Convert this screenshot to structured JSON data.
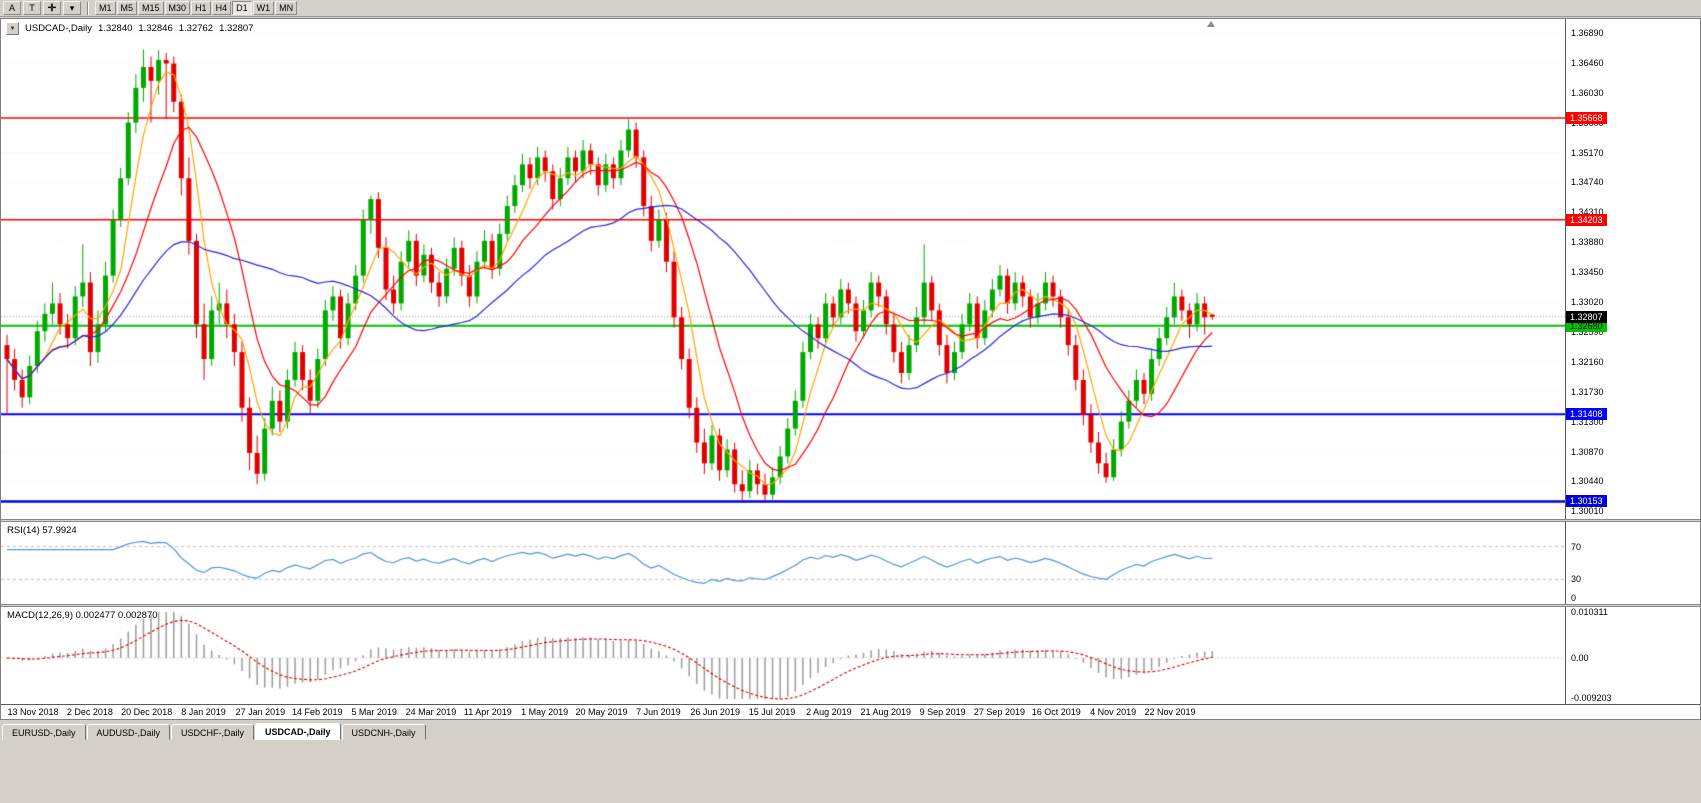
{
  "toolbar": {
    "buttons": [
      "A",
      "T"
    ],
    "timeframes": [
      "M1",
      "M5",
      "M15",
      "M30",
      "H1",
      "H4",
      "D1",
      "W1",
      "MN"
    ],
    "active_timeframe": "D1"
  },
  "chart_data": {
    "type": "candlestick",
    "symbol": "USDCAD-",
    "period": "Daily",
    "title": "USDCAD-,Daily",
    "ohlc_display": {
      "open": "1.32840",
      "high": "1.32846",
      "low": "1.32762",
      "close": "1.32807"
    },
    "price_axis_labels": [
      "1.36890",
      "1.36460",
      "1.36030",
      "1.35600",
      "1.35170",
      "1.34740",
      "1.34310",
      "1.33880",
      "1.33450",
      "1.33020",
      "1.32590",
      "1.32160",
      "1.31730",
      "1.31300",
      "1.30870",
      "1.30440",
      "1.30010"
    ],
    "x_axis_dates": [
      "13 Nov 2018",
      "2 Dec 2018",
      "20 Dec 2018",
      "8 Jan 2019",
      "27 Jan 2019",
      "14 Feb 2019",
      "5 Mar 2019",
      "24 Mar 2019",
      "11 Apr 2019",
      "1 May 2019",
      "20 May 2019",
      "7 Jun 2019",
      "26 Jun 2019",
      "15 Jul 2019",
      "2 Aug 2019",
      "21 Aug 2019",
      "9 Sep 2019",
      "27 Sep 2019",
      "16 Oct 2019",
      "4 Nov 2019",
      "22 Nov 2019"
    ],
    "scale": {
      "price_top": 1.3709,
      "price_bottom": 1.299
    },
    "colors": {
      "up": "#00A800",
      "down": "#E00000",
      "bid_line": "#999999",
      "background": "#FFFFFF"
    },
    "horizontal_lines": [
      {
        "price": 1.35668,
        "label": "1.35668",
        "color": "#FF0000",
        "text_color": "#FFFFFF",
        "width": 1.5
      },
      {
        "price": 1.34203,
        "label": "1.34203",
        "color": "#FF0000",
        "text_color": "#FFFFFF",
        "width": 1.5
      },
      {
        "price": 1.3268,
        "label": "1.32680",
        "color": "#00C000",
        "text_color": "#000000",
        "width": 2
      },
      {
        "price": 1.31408,
        "label": "1.31408",
        "color": "#0000FF",
        "text_color": "#FFFFFF",
        "width": 2
      },
      {
        "price": 1.30153,
        "label": "1.30153",
        "color": "#0000D0",
        "text_color": "#FFFFFF",
        "width": 2.5
      }
    ],
    "current_price": {
      "value": 1.32807,
      "label": "1.32807"
    },
    "moving_averages": [
      {
        "name": "ma-fast",
        "period": 5,
        "color": "#FFA500"
      },
      {
        "name": "ma-medium",
        "period": 11,
        "color": "#FF0000"
      },
      {
        "name": "ma-slow",
        "period": 31,
        "color": "#2828D8"
      }
    ],
    "candles": [
      [
        1.324,
        1.3255,
        1.314,
        1.322
      ],
      [
        1.322,
        1.3235,
        1.3175,
        1.319
      ],
      [
        1.319,
        1.3205,
        1.315,
        1.3165
      ],
      [
        1.3165,
        1.3225,
        1.3155,
        1.321
      ],
      [
        1.321,
        1.3275,
        1.32,
        1.326
      ],
      [
        1.326,
        1.33,
        1.3245,
        1.3285
      ],
      [
        1.3285,
        1.333,
        1.327,
        1.33
      ],
      [
        1.33,
        1.3315,
        1.3255,
        1.327
      ],
      [
        1.327,
        1.3285,
        1.3235,
        1.325
      ],
      [
        1.325,
        1.3325,
        1.324,
        1.331
      ],
      [
        1.331,
        1.3385,
        1.3295,
        1.333
      ],
      [
        1.333,
        1.3345,
        1.321,
        1.323
      ],
      [
        1.323,
        1.329,
        1.3215,
        1.327
      ],
      [
        1.327,
        1.336,
        1.326,
        1.334
      ],
      [
        1.334,
        1.3435,
        1.333,
        1.342
      ],
      [
        1.342,
        1.3495,
        1.341,
        1.348
      ],
      [
        1.348,
        1.3575,
        1.347,
        1.356
      ],
      [
        1.356,
        1.363,
        1.3545,
        1.361
      ],
      [
        1.361,
        1.3665,
        1.359,
        1.364
      ],
      [
        1.364,
        1.3655,
        1.356,
        1.362
      ],
      [
        1.362,
        1.3664,
        1.36,
        1.365
      ],
      [
        1.365,
        1.366,
        1.3565,
        1.3645
      ],
      [
        1.3645,
        1.3655,
        1.3575,
        1.359
      ],
      [
        1.359,
        1.36,
        1.3455,
        1.348
      ],
      [
        1.348,
        1.351,
        1.337,
        1.339
      ],
      [
        1.339,
        1.34,
        1.325,
        1.327
      ],
      [
        1.327,
        1.33,
        1.319,
        1.322
      ],
      [
        1.322,
        1.331,
        1.321,
        1.329
      ],
      [
        1.329,
        1.333,
        1.327,
        1.33
      ],
      [
        1.33,
        1.332,
        1.325,
        1.327
      ],
      [
        1.327,
        1.3285,
        1.321,
        1.323
      ],
      [
        1.323,
        1.3245,
        1.313,
        1.315
      ],
      [
        1.315,
        1.3165,
        1.306,
        1.3085
      ],
      [
        1.3085,
        1.311,
        1.304,
        1.3055
      ],
      [
        1.3055,
        1.3135,
        1.3045,
        1.312
      ],
      [
        1.312,
        1.318,
        1.311,
        1.316
      ],
      [
        1.316,
        1.3175,
        1.3115,
        1.313
      ],
      [
        1.313,
        1.3205,
        1.312,
        1.319
      ],
      [
        1.319,
        1.3245,
        1.318,
        1.323
      ],
      [
        1.323,
        1.324,
        1.3175,
        1.319
      ],
      [
        1.319,
        1.3205,
        1.314,
        1.316
      ],
      [
        1.316,
        1.3235,
        1.315,
        1.322
      ],
      [
        1.322,
        1.3305,
        1.321,
        1.329
      ],
      [
        1.329,
        1.3325,
        1.3275,
        1.331
      ],
      [
        1.331,
        1.332,
        1.3235,
        1.325
      ],
      [
        1.325,
        1.3315,
        1.324,
        1.33
      ],
      [
        1.33,
        1.3355,
        1.329,
        1.334
      ],
      [
        1.334,
        1.3435,
        1.333,
        1.342
      ],
      [
        1.342,
        1.3455,
        1.34,
        1.345
      ],
      [
        1.345,
        1.346,
        1.3365,
        1.338
      ],
      [
        1.338,
        1.3395,
        1.3305,
        1.332
      ],
      [
        1.332,
        1.334,
        1.3285,
        1.33
      ],
      [
        1.33,
        1.3375,
        1.329,
        1.336
      ],
      [
        1.336,
        1.3405,
        1.335,
        1.339
      ],
      [
        1.339,
        1.34,
        1.3325,
        1.334
      ],
      [
        1.334,
        1.3385,
        1.333,
        1.337
      ],
      [
        1.337,
        1.338,
        1.3315,
        1.333
      ],
      [
        1.333,
        1.3345,
        1.3295,
        1.331
      ],
      [
        1.331,
        1.3365,
        1.33,
        1.335
      ],
      [
        1.335,
        1.3395,
        1.334,
        1.338
      ],
      [
        1.338,
        1.339,
        1.3325,
        1.334
      ],
      [
        1.334,
        1.3355,
        1.3295,
        1.331
      ],
      [
        1.331,
        1.3375,
        1.33,
        1.336
      ],
      [
        1.336,
        1.3405,
        1.335,
        1.339
      ],
      [
        1.339,
        1.34,
        1.3335,
        1.335
      ],
      [
        1.335,
        1.3415,
        1.334,
        1.34
      ],
      [
        1.34,
        1.3455,
        1.339,
        1.344
      ],
      [
        1.344,
        1.3485,
        1.343,
        1.347
      ],
      [
        1.347,
        1.3515,
        1.346,
        1.35
      ],
      [
        1.35,
        1.351,
        1.3465,
        1.348
      ],
      [
        1.348,
        1.3525,
        1.347,
        1.351
      ],
      [
        1.351,
        1.352,
        1.3475,
        1.349
      ],
      [
        1.349,
        1.35,
        1.3435,
        1.345
      ],
      [
        1.345,
        1.3495,
        1.344,
        1.348
      ],
      [
        1.348,
        1.3525,
        1.347,
        1.351
      ],
      [
        1.351,
        1.352,
        1.3475,
        1.349
      ],
      [
        1.349,
        1.3535,
        1.348,
        1.352
      ],
      [
        1.352,
        1.353,
        1.3485,
        1.35
      ],
      [
        1.35,
        1.351,
        1.3455,
        1.347
      ],
      [
        1.347,
        1.3515,
        1.346,
        1.35
      ],
      [
        1.35,
        1.351,
        1.3465,
        1.348
      ],
      [
        1.348,
        1.3535,
        1.347,
        1.352
      ],
      [
        1.352,
        1.3565,
        1.351,
        1.355
      ],
      [
        1.355,
        1.356,
        1.3495,
        1.351
      ],
      [
        1.351,
        1.352,
        1.3425,
        1.344
      ],
      [
        1.344,
        1.3455,
        1.3375,
        1.339
      ],
      [
        1.339,
        1.3435,
        1.338,
        1.342
      ],
      [
        1.342,
        1.343,
        1.3345,
        1.336
      ],
      [
        1.336,
        1.3375,
        1.3265,
        1.328
      ],
      [
        1.328,
        1.3295,
        1.3205,
        1.322
      ],
      [
        1.322,
        1.3235,
        1.3135,
        1.315
      ],
      [
        1.315,
        1.3165,
        1.3085,
        1.31
      ],
      [
        1.31,
        1.312,
        1.3055,
        1.307
      ],
      [
        1.307,
        1.3125,
        1.306,
        1.311
      ],
      [
        1.311,
        1.312,
        1.3045,
        1.306
      ],
      [
        1.306,
        1.3105,
        1.305,
        1.309
      ],
      [
        1.309,
        1.31,
        1.3028,
        1.304
      ],
      [
        1.304,
        1.306,
        1.3016,
        1.303
      ],
      [
        1.303,
        1.3075,
        1.302,
        1.306
      ],
      [
        1.306,
        1.307,
        1.3025,
        1.304
      ],
      [
        1.304,
        1.3055,
        1.3016,
        1.3025
      ],
      [
        1.3025,
        1.3065,
        1.3018,
        1.305
      ],
      [
        1.305,
        1.3095,
        1.304,
        1.308
      ],
      [
        1.308,
        1.3135,
        1.307,
        1.312
      ],
      [
        1.312,
        1.3175,
        1.311,
        1.316
      ],
      [
        1.316,
        1.3245,
        1.315,
        1.323
      ],
      [
        1.323,
        1.3285,
        1.322,
        1.327
      ],
      [
        1.327,
        1.328,
        1.3235,
        1.325
      ],
      [
        1.325,
        1.3315,
        1.324,
        1.33
      ],
      [
        1.33,
        1.331,
        1.3265,
        1.328
      ],
      [
        1.328,
        1.3335,
        1.327,
        1.332
      ],
      [
        1.332,
        1.333,
        1.3285,
        1.33
      ],
      [
        1.33,
        1.331,
        1.3245,
        1.326
      ],
      [
        1.326,
        1.3305,
        1.325,
        1.329
      ],
      [
        1.329,
        1.3345,
        1.328,
        1.333
      ],
      [
        1.333,
        1.334,
        1.3295,
        1.331
      ],
      [
        1.331,
        1.332,
        1.3255,
        1.327
      ],
      [
        1.327,
        1.3285,
        1.3215,
        1.323
      ],
      [
        1.323,
        1.3245,
        1.3185,
        1.32
      ],
      [
        1.32,
        1.3255,
        1.319,
        1.324
      ],
      [
        1.324,
        1.3295,
        1.323,
        1.328
      ],
      [
        1.328,
        1.3385,
        1.327,
        1.333
      ],
      [
        1.333,
        1.334,
        1.3275,
        1.329
      ],
      [
        1.329,
        1.33,
        1.3225,
        1.324
      ],
      [
        1.324,
        1.3255,
        1.3185,
        1.32
      ],
      [
        1.32,
        1.3245,
        1.319,
        1.323
      ],
      [
        1.323,
        1.3285,
        1.322,
        1.327
      ],
      [
        1.327,
        1.3315,
        1.326,
        1.33
      ],
      [
        1.33,
        1.331,
        1.3235,
        1.325
      ],
      [
        1.325,
        1.3305,
        1.324,
        1.329
      ],
      [
        1.329,
        1.3335,
        1.328,
        1.332
      ],
      [
        1.332,
        1.3355,
        1.331,
        1.334
      ],
      [
        1.334,
        1.335,
        1.3285,
        1.33
      ],
      [
        1.33,
        1.3345,
        1.329,
        1.333
      ],
      [
        1.333,
        1.334,
        1.3295,
        1.331
      ],
      [
        1.331,
        1.332,
        1.3265,
        1.328
      ],
      [
        1.328,
        1.3315,
        1.327,
        1.33
      ],
      [
        1.33,
        1.3345,
        1.329,
        1.333
      ],
      [
        1.333,
        1.334,
        1.3295,
        1.331
      ],
      [
        1.331,
        1.332,
        1.3265,
        1.328
      ],
      [
        1.328,
        1.329,
        1.3225,
        1.324
      ],
      [
        1.324,
        1.3255,
        1.3175,
        1.319
      ],
      [
        1.319,
        1.3205,
        1.3125,
        1.314
      ],
      [
        1.314,
        1.3155,
        1.3085,
        1.31
      ],
      [
        1.31,
        1.3115,
        1.3055,
        1.307
      ],
      [
        1.307,
        1.3085,
        1.3042,
        1.305
      ],
      [
        1.305,
        1.3105,
        1.3045,
        1.309
      ],
      [
        1.309,
        1.3145,
        1.308,
        1.313
      ],
      [
        1.313,
        1.3175,
        1.312,
        1.316
      ],
      [
        1.316,
        1.3205,
        1.315,
        1.319
      ],
      [
        1.319,
        1.32,
        1.3155,
        1.317
      ],
      [
        1.317,
        1.3235,
        1.316,
        1.322
      ],
      [
        1.322,
        1.3265,
        1.321,
        1.325
      ],
      [
        1.325,
        1.3295,
        1.324,
        1.328
      ],
      [
        1.328,
        1.333,
        1.327,
        1.331
      ],
      [
        1.331,
        1.332,
        1.3275,
        1.329
      ],
      [
        1.329,
        1.33,
        1.325,
        1.327
      ],
      [
        1.327,
        1.3315,
        1.326,
        1.33
      ],
      [
        1.33,
        1.331,
        1.3255,
        1.328
      ],
      [
        1.3284,
        1.32846,
        1.32762,
        1.32807
      ]
    ],
    "indicators": {
      "rsi": {
        "label": "RSI(14) 57.9924",
        "period": 14,
        "levels": [
          70,
          30,
          0
        ],
        "color": "#4F95D8",
        "level_color": "#C0C0C0"
      },
      "macd": {
        "label": "MACD(12,26,9) 0.002477 0.002870",
        "fast": 12,
        "slow": 26,
        "signal": 9,
        "axis_labels": [
          "0.010311",
          "0.00",
          "-0.009203"
        ],
        "range_max": 0.010311,
        "range_min": -0.009203,
        "histogram_color": "#9C9C9C",
        "signal_color": "#D40000"
      }
    }
  },
  "tabs": [
    {
      "label": "EURUSD-,Daily",
      "active": false
    },
    {
      "label": "AUDUSD-,Daily",
      "active": false
    },
    {
      "label": "USDCHF-,Daily",
      "active": false
    },
    {
      "label": "USDCAD-,Daily",
      "active": true
    },
    {
      "label": "USDCNH-,Daily",
      "active": false
    }
  ]
}
